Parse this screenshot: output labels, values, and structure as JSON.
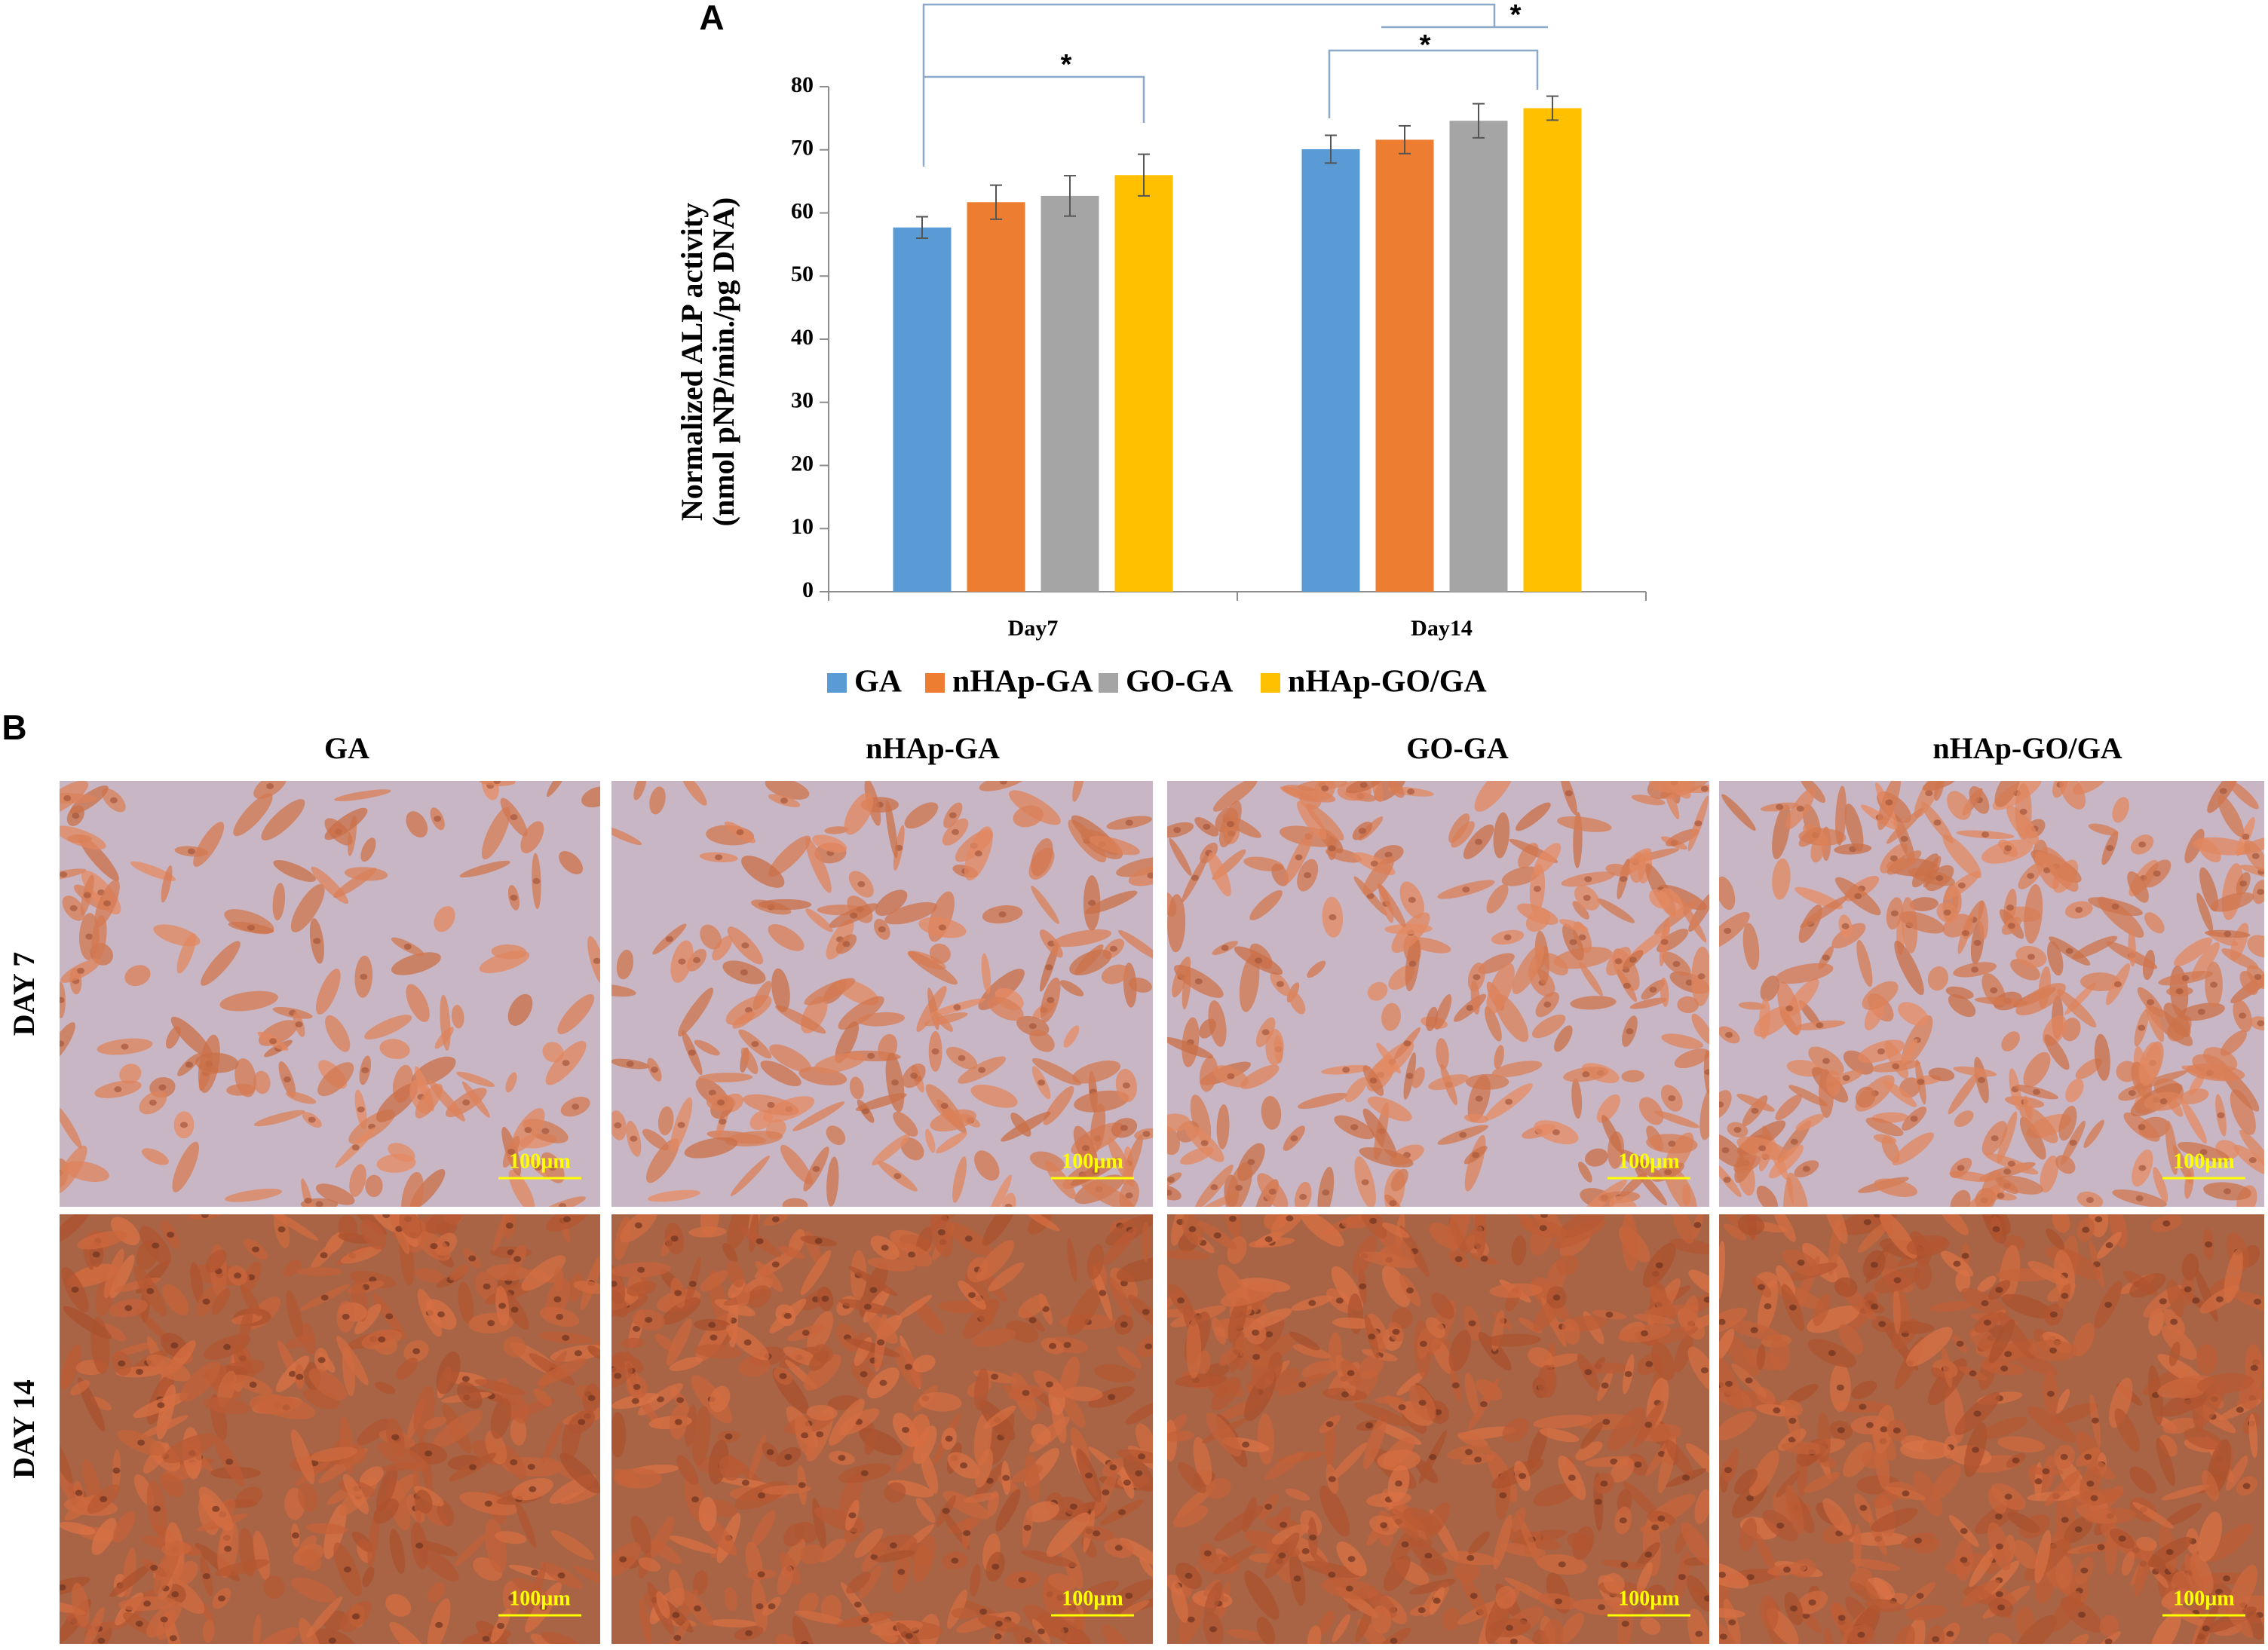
{
  "panel_a": {
    "label": "A"
  },
  "chart_data": {
    "type": "bar",
    "y_label": [
      "Normalized ALP activity",
      "(nmol pNP/min./pg DNA)"
    ],
    "categories": [
      "Day7",
      "Day14"
    ],
    "series": [
      {
        "name": "GA",
        "color": "#5b9bd5",
        "values": [
          57.7,
          70.1
        ],
        "errors": [
          1.7,
          2.2
        ]
      },
      {
        "name": "nHAp-GA",
        "color": "#ed7d31",
        "values": [
          61.7,
          71.6
        ],
        "errors": [
          2.7,
          2.2
        ]
      },
      {
        "name": "GO-GA",
        "color": "#a5a5a5",
        "values": [
          62.7,
          74.6
        ],
        "errors": [
          3.2,
          2.7
        ]
      },
      {
        "name": "nHAp-GO/GA",
        "color": "#ffc000",
        "values": [
          66,
          76.6
        ],
        "errors": [
          3.3,
          1.9
        ]
      }
    ],
    "ylim": [
      0,
      80
    ],
    "yticks": [
      0,
      10,
      20,
      30,
      40,
      50,
      60,
      70,
      80
    ],
    "annotations": [
      "*",
      "*",
      "*"
    ]
  },
  "panel_b": {
    "label": "B",
    "columns": [
      "GA",
      "nHAp-GA",
      "GO-GA",
      "nHAp-GO/GA"
    ],
    "rows": [
      "DAY 7",
      "DAY 14"
    ],
    "scale_bar": "100µm"
  }
}
